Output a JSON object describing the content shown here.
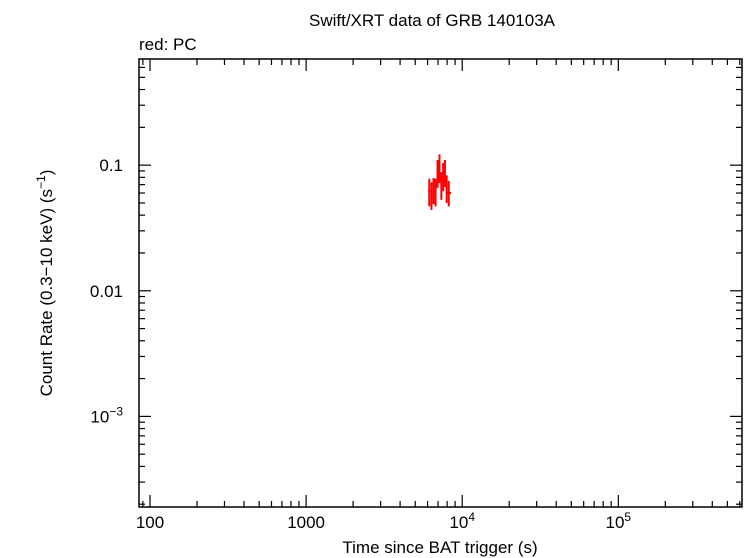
{
  "chart_data": {
    "type": "scatter",
    "title": "Swift/XRT data of GRB 140103A",
    "subtitle": "red: PC",
    "xlabel": "Time since BAT trigger (s)",
    "ylabel_main": "Count Rate (0.3−10 keV) (s",
    "ylabel_sup": "−1",
    "ylabel_end": ")",
    "x_scale": "log",
    "y_scale": "log",
    "xlim": [
      85,
      620000
    ],
    "ylim": [
      0.00019,
      0.7
    ],
    "x_ticks": [
      {
        "value": 100,
        "base": "100",
        "sup": ""
      },
      {
        "value": 1000,
        "base": "1000",
        "sup": ""
      },
      {
        "value": 10000,
        "base": "10",
        "sup": "4"
      },
      {
        "value": 100000,
        "base": "10",
        "sup": "5"
      }
    ],
    "y_ticks": [
      {
        "value": 0.1,
        "base": "0.1",
        "sup": ""
      },
      {
        "value": 0.01,
        "base": "0.01",
        "sup": ""
      },
      {
        "value": 0.001,
        "base": "10",
        "sup": "−3"
      }
    ],
    "grid": false,
    "series": [
      {
        "color": "#ff0000",
        "points": [
          {
            "x": 6150,
            "xerr": [
              6050,
              6250
            ],
            "y": 0.062,
            "yerr": [
              0.047,
              0.078
            ]
          },
          {
            "x": 6350,
            "xerr": [
              6250,
              6450
            ],
            "y": 0.058,
            "yerr": [
              0.044,
              0.073
            ]
          },
          {
            "x": 6550,
            "xerr": [
              6450,
              6650
            ],
            "y": 0.064,
            "yerr": [
              0.049,
              0.079
            ]
          },
          {
            "x": 6750,
            "xerr": [
              6650,
              6850
            ],
            "y": 0.062,
            "yerr": [
              0.047,
              0.078
            ]
          },
          {
            "x": 6950,
            "xerr": [
              6850,
              7050
            ],
            "y": 0.088,
            "yerr": [
              0.066,
              0.11
            ]
          },
          {
            "x": 7150,
            "xerr": [
              7050,
              7250
            ],
            "y": 0.096,
            "yerr": [
              0.072,
              0.122
            ]
          },
          {
            "x": 7350,
            "xerr": [
              7250,
              7450
            ],
            "y": 0.07,
            "yerr": [
              0.053,
              0.088
            ]
          },
          {
            "x": 7550,
            "xerr": [
              7450,
              7650
            ],
            "y": 0.082,
            "yerr": [
              0.062,
              0.104
            ]
          },
          {
            "x": 7750,
            "xerr": [
              7650,
              7850
            ],
            "y": 0.088,
            "yerr": [
              0.067,
              0.11
            ]
          },
          {
            "x": 7950,
            "xerr": [
              7850,
              8050
            ],
            "y": 0.066,
            "yerr": [
              0.05,
              0.083
            ]
          },
          {
            "x": 8200,
            "xerr": [
              7950,
              8500
            ],
            "y": 0.06,
            "yerr": [
              0.047,
              0.075
            ]
          }
        ]
      }
    ]
  }
}
